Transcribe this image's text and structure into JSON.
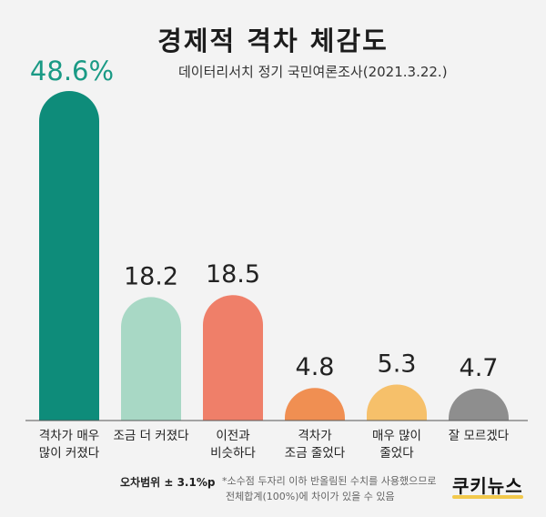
{
  "header": {
    "title": "경제적 격차 체감도",
    "subtitle": "데이터리서치 정기 국민여론조사(2021.3.22.)"
  },
  "chart_data": {
    "type": "bar",
    "categories": [
      "격차가 매우\n많이 커졌다",
      "조금 더 커졌다",
      "이전과\n비슷하다",
      "격차가\n조금 줄었다",
      "매우 많이\n줄었다",
      "잘 모르겠다"
    ],
    "values": [
      48.6,
      18.2,
      18.5,
      4.8,
      5.3,
      4.7
    ],
    "value_labels": [
      "48.6%",
      "18.2",
      "18.5",
      "4.8",
      "5.3",
      "4.7"
    ],
    "colors": [
      "#0e8c7a",
      "#a8d8c5",
      "#ef7f69",
      "#f08f52",
      "#f6c06a",
      "#8e8e8e"
    ],
    "highlight_label_color": "#1a9a85",
    "ylim": [
      0,
      48.6
    ],
    "title": "경제적 격차 체감도"
  },
  "footer": {
    "range": "오차범위 ± 3.1%p",
    "note_line1": "*소수점 두자리 이하 반올림된 수치를 사용했으므로",
    "note_line2": "전체합계(100%)에 차이가 있을 수 있음",
    "logo": "쿠키뉴스"
  }
}
